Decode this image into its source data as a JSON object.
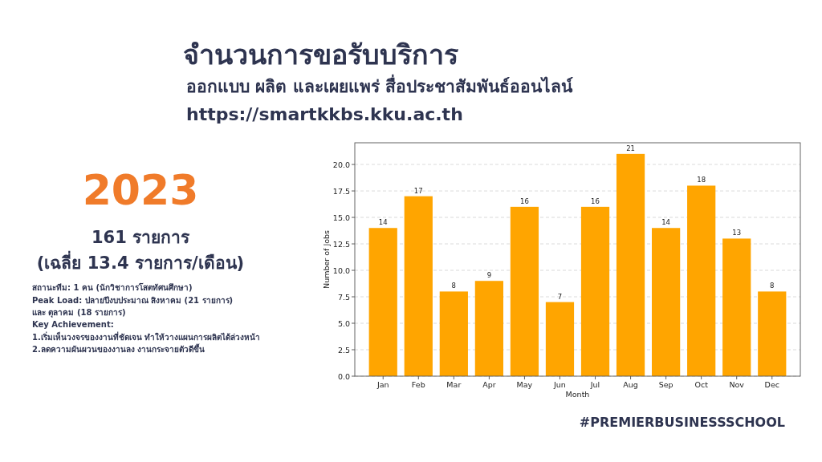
{
  "chart_data": {
    "type": "bar",
    "title": "จำนวนการขอรับบริการ",
    "subtitle": "ออกแบบ ผลิต และเผยแพร่ สื่อประชาสัมพันธ์ออนไลน์",
    "annotations": [
      "https://smartkkbs.kku.ac.th",
      "2023",
      "161 รายการ",
      "(เฉลี่ย 13.4 รายการ/เดือน)",
      "สถานะทีม: 1 คน (นักวิชาการโสตทัศนศึกษา)",
      "Peak Load: ปลายปีงบประมาณ สิงหาคม (21 รายการ)",
      "และ ตุลาคม (18 รายการ)",
      "Key Achievement:",
      "1.เริ่มเห็นวงจรของงานที่ชัดเจน ทำให้วางแผนการผลิตได้ล่วงหน้า",
      "2.ลดความผันผวนของงานลง งานกระจายตัวดีขึ้น",
      "#PREMIERBUSINESSSCHOOL"
    ],
    "xlabel": "Month",
    "ylabel": "Number of Jobs",
    "categories": [
      "Jan",
      "Feb",
      "Mar",
      "Apr",
      "May",
      "Jun",
      "Jul",
      "Aug",
      "Sep",
      "Oct",
      "Nov",
      "Dec"
    ],
    "values": [
      14,
      17,
      8,
      9,
      16,
      7,
      16,
      21,
      14,
      18,
      13,
      8
    ],
    "color": "#ffa500",
    "data_labels": true,
    "grid": "y",
    "ylim": [
      0,
      22.05
    ],
    "yticks": [
      {
        "value": 0,
        "label": "0.0"
      },
      {
        "value": 2.5,
        "label": "2.5"
      },
      {
        "value": 5,
        "label": "5.0"
      },
      {
        "value": 7.5,
        "label": "7.5"
      },
      {
        "value": 10,
        "label": "10.0"
      },
      {
        "value": 12.5,
        "label": "12.5"
      },
      {
        "value": 15,
        "label": "15.0"
      },
      {
        "value": 17.5,
        "label": "17.5"
      },
      {
        "value": 20,
        "label": "20.0"
      }
    ]
  }
}
